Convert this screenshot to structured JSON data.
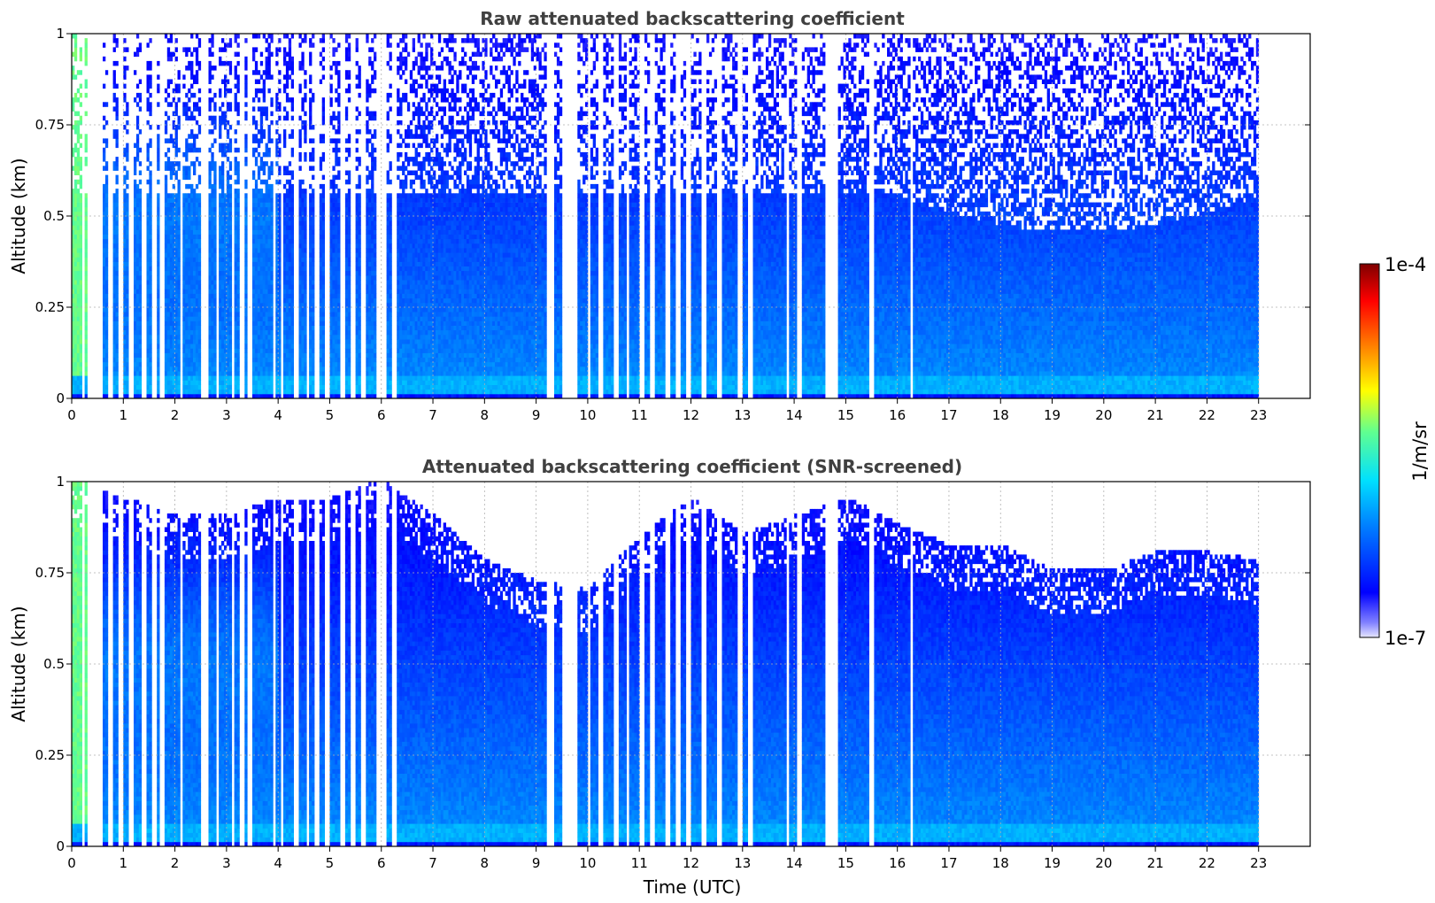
{
  "chart_data": [
    {
      "type": "heatmap",
      "title": "Raw attenuated backscattering coefficient",
      "xlabel": "",
      "ylabel": "Altitude (km)",
      "xlim": [
        0,
        24
      ],
      "ylim": [
        0,
        1
      ],
      "x_ticks": [
        "0",
        "1",
        "2",
        "3",
        "4",
        "5",
        "6",
        "7",
        "8",
        "9",
        "10",
        "11",
        "12",
        "13",
        "14",
        "15",
        "16",
        "17",
        "18",
        "19",
        "20",
        "21",
        "22",
        "23"
      ],
      "y_ticks": [
        "0",
        "0.25",
        "0.5",
        "0.75",
        "1"
      ],
      "grid": true,
      "data_end_time": 23,
      "gaps": [
        [
          0.18,
          0.24
        ],
        [
          0.32,
          0.58
        ],
        [
          0.72,
          0.78
        ],
        [
          0.92,
          1.0
        ],
        [
          1.12,
          1.2
        ],
        [
          1.35,
          1.44
        ],
        [
          1.57,
          1.64
        ],
        [
          1.72,
          1.82
        ],
        [
          2.08,
          2.16
        ],
        [
          2.52,
          2.64
        ],
        [
          2.78,
          2.86
        ],
        [
          3.08,
          3.14
        ],
        [
          3.25,
          3.34
        ],
        [
          3.42,
          3.5
        ],
        [
          3.9,
          3.95
        ],
        [
          4.05,
          4.12
        ],
        [
          4.3,
          4.42
        ],
        [
          4.55,
          4.62
        ],
        [
          4.72,
          4.8
        ],
        [
          4.92,
          5.02
        ],
        [
          5.2,
          5.28
        ],
        [
          5.42,
          5.5
        ],
        [
          5.62,
          5.7
        ],
        [
          5.92,
          6.08
        ],
        [
          6.2,
          6.3
        ],
        [
          9.22,
          9.34
        ],
        [
          9.52,
          9.78
        ],
        [
          9.98,
          10.06
        ],
        [
          10.22,
          10.3
        ],
        [
          10.48,
          10.58
        ],
        [
          10.75,
          10.82
        ],
        [
          11.02,
          11.1
        ],
        [
          11.22,
          11.3
        ],
        [
          11.5,
          11.6
        ],
        [
          11.72,
          11.8
        ],
        [
          11.92,
          12.0
        ],
        [
          12.2,
          12.32
        ],
        [
          12.52,
          12.6
        ],
        [
          12.9,
          12.98
        ],
        [
          13.08,
          13.2
        ],
        [
          13.85,
          13.92
        ],
        [
          14.05,
          14.15
        ],
        [
          14.6,
          14.85
        ],
        [
          15.45,
          15.55
        ],
        [
          16.25,
          16.32
        ]
      ],
      "column_max_altitude": null,
      "noise_floor_altitude": 0.55,
      "colorbar": {
        "min_label": "1e-7",
        "max_label": "1e-4",
        "unit": "1/m/sr",
        "scale": "log",
        "colormap": "jet",
        "min": 1e-07,
        "max": 0.0001
      }
    },
    {
      "type": "heatmap",
      "title": "Attenuated backscattering coefficient (SNR-screened)",
      "xlabel": "Time (UTC)",
      "ylabel": "Altitude (km)",
      "xlim": [
        0,
        24
      ],
      "ylim": [
        0,
        1
      ],
      "x_ticks": [
        "0",
        "1",
        "2",
        "3",
        "4",
        "5",
        "6",
        "7",
        "8",
        "9",
        "10",
        "11",
        "12",
        "13",
        "14",
        "15",
        "16",
        "17",
        "18",
        "19",
        "20",
        "21",
        "22",
        "23"
      ],
      "y_ticks": [
        "0",
        "0.25",
        "0.5",
        "0.75",
        "1"
      ],
      "grid": true,
      "data_end_time": 23,
      "gaps": [
        [
          0.18,
          0.24
        ],
        [
          0.32,
          0.58
        ],
        [
          0.72,
          0.78
        ],
        [
          0.92,
          1.0
        ],
        [
          1.12,
          1.2
        ],
        [
          1.35,
          1.44
        ],
        [
          1.57,
          1.64
        ],
        [
          1.72,
          1.82
        ],
        [
          2.08,
          2.16
        ],
        [
          2.52,
          2.64
        ],
        [
          2.78,
          2.86
        ],
        [
          3.08,
          3.14
        ],
        [
          3.25,
          3.34
        ],
        [
          3.42,
          3.5
        ],
        [
          3.9,
          3.95
        ],
        [
          4.05,
          4.12
        ],
        [
          4.3,
          4.42
        ],
        [
          4.55,
          4.62
        ],
        [
          4.72,
          4.8
        ],
        [
          4.92,
          5.02
        ],
        [
          5.2,
          5.28
        ],
        [
          5.42,
          5.5
        ],
        [
          5.62,
          5.7
        ],
        [
          5.92,
          6.08
        ],
        [
          6.2,
          6.3
        ],
        [
          9.22,
          9.34
        ],
        [
          9.52,
          9.78
        ],
        [
          9.98,
          10.06
        ],
        [
          10.22,
          10.3
        ],
        [
          10.48,
          10.58
        ],
        [
          10.75,
          10.82
        ],
        [
          11.02,
          11.1
        ],
        [
          11.22,
          11.3
        ],
        [
          11.5,
          11.6
        ],
        [
          11.72,
          11.8
        ],
        [
          11.92,
          12.0
        ],
        [
          12.2,
          12.32
        ],
        [
          12.52,
          12.6
        ],
        [
          12.9,
          12.98
        ],
        [
          13.08,
          13.2
        ],
        [
          13.85,
          13.92
        ],
        [
          14.05,
          14.15
        ],
        [
          14.6,
          14.85
        ],
        [
          15.45,
          15.55
        ],
        [
          16.25,
          16.32
        ]
      ],
      "column_max_altitude": [
        [
          0,
          1.0
        ],
        [
          1,
          0.95
        ],
        [
          2,
          0.9
        ],
        [
          3,
          0.9
        ],
        [
          4,
          0.95
        ],
        [
          5,
          0.95
        ],
        [
          6,
          1.0
        ],
        [
          7,
          0.9
        ],
        [
          8,
          0.78
        ],
        [
          9,
          0.72
        ],
        [
          10,
          0.7
        ],
        [
          11,
          0.85
        ],
        [
          12,
          0.95
        ],
        [
          13,
          0.85
        ],
        [
          14,
          0.9
        ],
        [
          15,
          0.95
        ],
        [
          16,
          0.88
        ],
        [
          17,
          0.82
        ],
        [
          18,
          0.82
        ],
        [
          19,
          0.75
        ],
        [
          20,
          0.75
        ],
        [
          21,
          0.8
        ],
        [
          22,
          0.8
        ],
        [
          23,
          0.78
        ]
      ],
      "noise_floor_altitude": null,
      "colorbar": {
        "min_label": "1e-7",
        "max_label": "1e-4",
        "unit": "1/m/sr",
        "scale": "log",
        "colormap": "jet",
        "min": 1e-07,
        "max": 0.0001
      }
    }
  ]
}
